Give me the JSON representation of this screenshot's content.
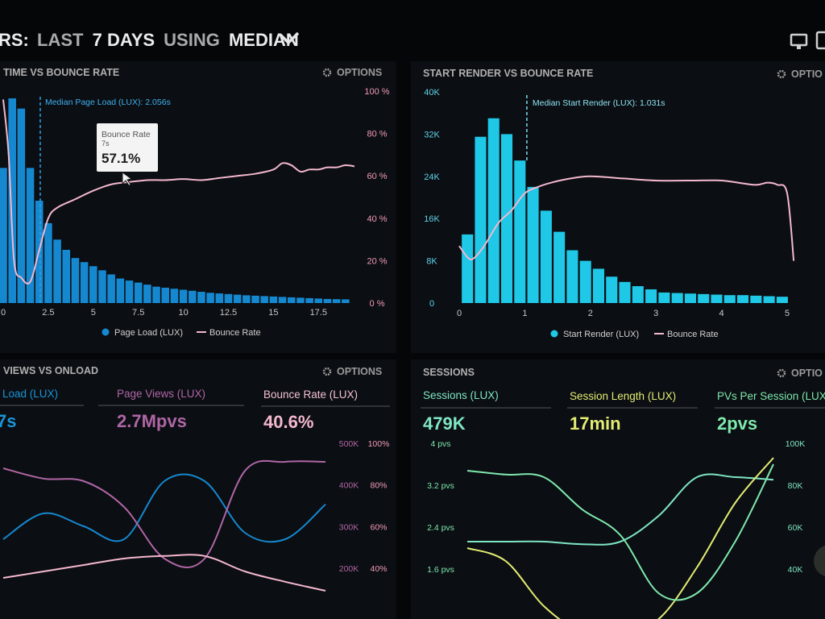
{
  "header": {
    "title": "RS: LAST 7 DAYS USING MEDIAN",
    "title_parts": [
      "RS:",
      "LAST",
      "7 DAYS",
      "USING",
      "MEDIAN"
    ],
    "monitor_icon": "monitor-icon",
    "mobile_icon": "mobile-icon",
    "chevron_icon": "chevron-down-icon"
  },
  "panels": {
    "p1": {
      "title": "TIME VS BOUNCE RATE",
      "options": "OPTIONS"
    },
    "p2": {
      "title": "START RENDER VS BOUNCE RATE",
      "options": "OPTIO"
    },
    "p3": {
      "title": "VIEWS VS ONLOAD",
      "options": "OPTIONS"
    },
    "p4": {
      "title": "SESSIONS",
      "options": "OPTIO"
    }
  },
  "tooltip": {
    "label": "Bounce Rate",
    "sub": "7s",
    "value": "57.1%"
  },
  "colors": {
    "blue": "#1588d0",
    "cyan": "#1ec8e6",
    "pink": "#f4b8cf",
    "magenta": "#b066a6",
    "pink_text": "#f29ab8",
    "green": "#7ee8ad",
    "yellow": "#e3ec73",
    "teal": "#7fe6c4"
  },
  "metrics": {
    "p3": [
      {
        "label": "Load (LUX)",
        "value": "7s"
      },
      {
        "label": "Page Views (LUX)",
        "value": "2.7Mpvs"
      },
      {
        "label": "Bounce Rate (LUX)",
        "value": "40.6%"
      }
    ],
    "p4": [
      {
        "label": "Sessions (LUX)",
        "value": "479K"
      },
      {
        "label": "Session Length (LUX)",
        "value": "17min"
      },
      {
        "label": "PVs Per Session (LUX)",
        "value": "2pvs"
      }
    ]
  },
  "chart_data": [
    {
      "type": "bar",
      "title": "TIME VS BOUNCE RATE",
      "x_ticks": [
        "0",
        "2.5",
        "5",
        "7.5",
        "10",
        "12.5",
        "15",
        "17.5"
      ],
      "x_range": [
        0,
        19.5
      ],
      "y_right_ticks": [
        "0 %",
        "20 %",
        "40 %",
        "60 %",
        "80 %",
        "100 %"
      ],
      "median_label": "Median Page Load (LUX): 2.056s",
      "median_x": 2.056,
      "series": [
        {
          "name": "Page Load (LUX)",
          "kind": "bar",
          "x": [
            0,
            0.5,
            1,
            1.5,
            2,
            2.5,
            3,
            3.5,
            4,
            4.5,
            5,
            5.5,
            6,
            6.5,
            7,
            7.5,
            8,
            8.5,
            9,
            9.5,
            10,
            10.5,
            11,
            11.5,
            12,
            12.5,
            13,
            13.5,
            14,
            14.5,
            15,
            15.5,
            16,
            16.5,
            17,
            17.5,
            18,
            18.5,
            19
          ],
          "values": [
            66,
            100,
            95,
            66,
            50,
            39,
            31,
            26,
            22,
            20,
            18,
            16,
            14,
            12,
            11,
            10,
            9,
            8,
            7.5,
            7,
            6.5,
            6,
            5.5,
            5,
            4.7,
            4.4,
            4.1,
            3.8,
            3.6,
            3.4,
            3.2,
            3,
            2.8,
            2.6,
            2.4,
            2.2,
            2,
            1.9,
            1.8
          ]
        },
        {
          "name": "Bounce Rate",
          "kind": "line",
          "x": [
            0,
            0.3,
            0.6,
            1,
            1.5,
            2,
            2.5,
            3,
            4,
            5,
            6,
            7,
            8,
            9,
            10,
            11,
            12,
            13,
            14,
            15,
            15.5,
            16,
            16.5,
            17,
            17.5,
            18,
            18.5,
            19,
            19.5
          ],
          "values": [
            96,
            70,
            20,
            12,
            10,
            25,
            40,
            45,
            49,
            53,
            56,
            57.1,
            58,
            58,
            58.5,
            58,
            59,
            60,
            61,
            63,
            66,
            65,
            62,
            63,
            63,
            64,
            64,
            65,
            64.5
          ]
        }
      ]
    },
    {
      "type": "bar",
      "title": "START RENDER VS BOUNCE RATE",
      "x_ticks": [
        "0",
        "1",
        "2",
        "3",
        "4",
        "5"
      ],
      "x_range": [
        0,
        5.2
      ],
      "y_left_ticks": [
        "0",
        "8K",
        "16K",
        "24K",
        "32K",
        "40K"
      ],
      "median_label": "Median Start Render (LUX): 1.031s",
      "median_x": 1.031,
      "series": [
        {
          "name": "Start Render (LUX)",
          "kind": "bar",
          "x": [
            0.125,
            0.325,
            0.525,
            0.725,
            0.925,
            1.125,
            1.325,
            1.525,
            1.725,
            1.925,
            2.125,
            2.325,
            2.525,
            2.725,
            2.925,
            3.125,
            3.325,
            3.525,
            3.725,
            3.925,
            4.125,
            4.325,
            4.525,
            4.725,
            4.925
          ],
          "values": [
            13000,
            31500,
            35000,
            32000,
            27000,
            22000,
            17500,
            13500,
            10000,
            8000,
            6500,
            5000,
            4000,
            3200,
            2600,
            2000,
            1900,
            1800,
            1700,
            1600,
            1500,
            1500,
            1400,
            1300,
            1200
          ]
        },
        {
          "name": "Bounce Rate",
          "kind": "line",
          "x": [
            0,
            0.15,
            0.25,
            0.4,
            0.6,
            0.8,
            1,
            1.2,
            1.4,
            1.7,
            2,
            2.5,
            3,
            3.5,
            4,
            4.5,
            4.7,
            4.85,
            5.0,
            5.1
          ],
          "values": [
            27,
            21,
            22,
            28,
            38,
            44,
            52,
            55,
            57,
            59,
            60,
            59,
            58,
            58,
            58,
            56,
            57,
            56,
            52,
            20
          ]
        }
      ]
    },
    {
      "type": "line",
      "title": "VIEWS VS ONLOAD",
      "y_ticks_a": [
        "500K",
        "400K",
        "300K",
        "200K"
      ],
      "y_ticks_b": [
        "100%",
        "80%",
        "60%",
        "40%"
      ],
      "series": [
        {
          "name": "Load (LUX)",
          "x": [
            0,
            1,
            2,
            3,
            4,
            5,
            6,
            7,
            8
          ],
          "values": [
            0.35,
            0.55,
            0.45,
            0.35,
            0.8,
            0.8,
            0.4,
            0.35,
            0.62
          ]
        },
        {
          "name": "Page Views (LUX)",
          "x": [
            0,
            1,
            2,
            3,
            4,
            5,
            6,
            7,
            8
          ],
          "values": [
            0.9,
            0.82,
            0.8,
            0.6,
            0.2,
            0.2,
            0.88,
            0.95,
            0.95
          ]
        },
        {
          "name": "Bounce Rate (LUX)",
          "x": [
            0,
            1,
            2,
            3,
            4,
            5,
            6,
            7,
            8
          ],
          "values": [
            0.05,
            0.1,
            0.15,
            0.2,
            0.22,
            0.22,
            0.1,
            0.02,
            -0.05
          ]
        }
      ]
    },
    {
      "type": "line",
      "title": "SESSIONS",
      "y_ticks_a": [
        "4 pvs",
        "3.2 pvs",
        "2.4 pvs",
        "1.6 pvs"
      ],
      "y_ticks_b": [
        "100K",
        "80K",
        "60K",
        "40K"
      ],
      "series": [
        {
          "name": "Sessions (LUX)",
          "x": [
            0,
            1,
            2,
            3,
            4,
            5,
            6,
            7,
            8
          ],
          "values": [
            0.3,
            0.3,
            0.3,
            0.28,
            0.3,
            0.5,
            0.8,
            0.8,
            0.78
          ]
        },
        {
          "name": "Session Length (LUX)",
          "x": [
            0,
            1,
            2,
            3,
            4,
            5,
            6,
            7,
            8
          ],
          "values": [
            0.25,
            0.15,
            -0.2,
            -0.4,
            -0.4,
            -0.3,
            0.1,
            0.6,
            0.95
          ]
        },
        {
          "name": "PVs Per Session (LUX)",
          "x": [
            0,
            1,
            2,
            3,
            4,
            5,
            6,
            7,
            8
          ],
          "values": [
            0.85,
            0.82,
            0.8,
            0.55,
            0.35,
            -0.1,
            -0.1,
            0.3,
            0.9
          ]
        }
      ]
    }
  ]
}
